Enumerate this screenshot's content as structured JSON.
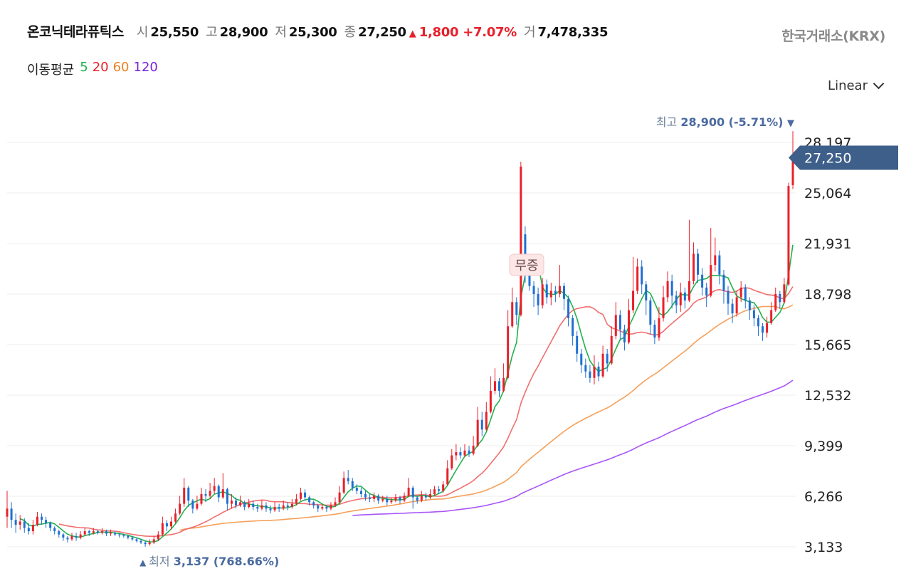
{
  "header": {
    "name": "온코닉테라퓨틱스",
    "open_label": "시",
    "open": "25,550",
    "high_label": "고",
    "high": "28,900",
    "low_label": "저",
    "low": "25,300",
    "close_label": "종",
    "close": "27,250",
    "change_icon": "up-triangle-icon",
    "change": "1,800",
    "change_pct": "+7.07%",
    "volume_label": "거",
    "volume": "7,478,335",
    "exchange": "한국거래소(KRX)"
  },
  "ma_legend": {
    "title": "이동평균",
    "items": [
      {
        "label": "5",
        "color": "#22b14c"
      },
      {
        "label": "20",
        "color": "#e8202a"
      },
      {
        "label": "60",
        "color": "#f08020"
      },
      {
        "label": "120",
        "color": "#7a22d8"
      }
    ]
  },
  "scale": {
    "label": "Linear",
    "icon": "chevron-down-icon"
  },
  "chart_data": {
    "type": "candlestick",
    "y_ticks": [
      "28,197",
      "25,064",
      "21,931",
      "18,798",
      "15,665",
      "12,532",
      "9,399",
      "6,266",
      "3,133"
    ],
    "y_tick_values": [
      28197,
      25064,
      21931,
      18798,
      15665,
      12532,
      9399,
      6266,
      3133
    ],
    "ylim": [
      2100,
      29900
    ],
    "grid": true,
    "colors": {
      "up": "#e8202a",
      "down": "#1f6fd1",
      "ma5": "#22b14c",
      "ma20": "#f26d6d",
      "ma60": "#f5a05a",
      "ma120": "#a855f7"
    },
    "current_price_label": "27,250",
    "current_price": 27250,
    "max_annotation": {
      "label": "최고",
      "value": "28,900",
      "pct": "(-5.71%)",
      "icon": "down-triangle-icon"
    },
    "min_annotation": {
      "label": "최저",
      "value": "3,137",
      "pct": "(768.66%)",
      "icon": "up-triangle-icon"
    },
    "event_badge": {
      "label": "무증"
    },
    "candles": [
      {
        "o": 5000,
        "c": 5500,
        "h": 6600,
        "l": 4300
      },
      {
        "o": 5500,
        "c": 4800,
        "h": 5900,
        "l": 4300
      },
      {
        "o": 4800,
        "c": 4500,
        "h": 5200,
        "l": 4000
      },
      {
        "o": 4500,
        "c": 4700,
        "h": 5100,
        "l": 4200
      },
      {
        "o": 4700,
        "c": 4300,
        "h": 4900,
        "l": 4000
      },
      {
        "o": 4300,
        "c": 4100,
        "h": 4600,
        "l": 3900
      },
      {
        "o": 4100,
        "c": 4500,
        "h": 4800,
        "l": 3900
      },
      {
        "o": 4500,
        "c": 5000,
        "h": 5300,
        "l": 4400
      },
      {
        "o": 5000,
        "c": 4800,
        "h": 5200,
        "l": 4500
      },
      {
        "o": 4800,
        "c": 4600,
        "h": 5000,
        "l": 4300
      },
      {
        "o": 4600,
        "c": 4300,
        "h": 4700,
        "l": 4100
      },
      {
        "o": 4300,
        "c": 4100,
        "h": 4400,
        "l": 3900
      },
      {
        "o": 4100,
        "c": 3900,
        "h": 4200,
        "l": 3700
      },
      {
        "o": 3900,
        "c": 3700,
        "h": 4000,
        "l": 3500
      },
      {
        "o": 3700,
        "c": 3600,
        "h": 3800,
        "l": 3400
      },
      {
        "o": 3600,
        "c": 3800,
        "h": 4000,
        "l": 3500
      },
      {
        "o": 3800,
        "c": 3700,
        "h": 4000,
        "l": 3500
      },
      {
        "o": 3700,
        "c": 3900,
        "h": 4100,
        "l": 3600
      },
      {
        "o": 3900,
        "c": 4100,
        "h": 4300,
        "l": 3800
      },
      {
        "o": 4100,
        "c": 4000,
        "h": 4200,
        "l": 3800
      },
      {
        "o": 4000,
        "c": 4100,
        "h": 4300,
        "l": 3900
      },
      {
        "o": 4100,
        "c": 4000,
        "h": 4200,
        "l": 3900
      },
      {
        "o": 4000,
        "c": 4100,
        "h": 4300,
        "l": 3900
      },
      {
        "o": 4100,
        "c": 3950,
        "h": 4200,
        "l": 3800
      },
      {
        "o": 3950,
        "c": 4000,
        "h": 4200,
        "l": 3800
      },
      {
        "o": 4000,
        "c": 3900,
        "h": 4100,
        "l": 3800
      },
      {
        "o": 3900,
        "c": 3850,
        "h": 4000,
        "l": 3700
      },
      {
        "o": 3850,
        "c": 3800,
        "h": 3950,
        "l": 3700
      },
      {
        "o": 3800,
        "c": 3700,
        "h": 3900,
        "l": 3600
      },
      {
        "o": 3700,
        "c": 3600,
        "h": 3800,
        "l": 3500
      },
      {
        "o": 3600,
        "c": 3500,
        "h": 3700,
        "l": 3400
      },
      {
        "o": 3500,
        "c": 3400,
        "h": 3600,
        "l": 3300
      },
      {
        "o": 3400,
        "c": 3300,
        "h": 3500,
        "l": 3137
      },
      {
        "o": 3300,
        "c": 3400,
        "h": 3600,
        "l": 3200
      },
      {
        "o": 3400,
        "c": 3600,
        "h": 3800,
        "l": 3300
      },
      {
        "o": 3600,
        "c": 3900,
        "h": 4100,
        "l": 3500
      },
      {
        "o": 3900,
        "c": 4600,
        "h": 5000,
        "l": 3800
      },
      {
        "o": 4600,
        "c": 4400,
        "h": 4800,
        "l": 4100
      },
      {
        "o": 4400,
        "c": 4700,
        "h": 5000,
        "l": 4200
      },
      {
        "o": 4700,
        "c": 5200,
        "h": 5500,
        "l": 4600
      },
      {
        "o": 5200,
        "c": 5800,
        "h": 6300,
        "l": 5100
      },
      {
        "o": 5800,
        "c": 6800,
        "h": 7400,
        "l": 5600
      },
      {
        "o": 6800,
        "c": 6000,
        "h": 6900,
        "l": 5600
      },
      {
        "o": 6000,
        "c": 5500,
        "h": 6100,
        "l": 5200
      },
      {
        "o": 5500,
        "c": 5800,
        "h": 6300,
        "l": 5400
      },
      {
        "o": 5800,
        "c": 6400,
        "h": 6800,
        "l": 5700
      },
      {
        "o": 6400,
        "c": 6300,
        "h": 6700,
        "l": 5900
      },
      {
        "o": 6300,
        "c": 6600,
        "h": 7100,
        "l": 6100
      },
      {
        "o": 6600,
        "c": 6900,
        "h": 7400,
        "l": 6400
      },
      {
        "o": 6900,
        "c": 6200,
        "h": 7000,
        "l": 5900
      },
      {
        "o": 6200,
        "c": 6700,
        "h": 7700,
        "l": 6100
      },
      {
        "o": 6700,
        "c": 5800,
        "h": 6800,
        "l": 5400
      },
      {
        "o": 5800,
        "c": 6000,
        "h": 6400,
        "l": 5500
      },
      {
        "o": 6000,
        "c": 5700,
        "h": 6200,
        "l": 5500
      },
      {
        "o": 5700,
        "c": 5900,
        "h": 6300,
        "l": 5600
      },
      {
        "o": 5900,
        "c": 5600,
        "h": 6000,
        "l": 5400
      },
      {
        "o": 5600,
        "c": 5800,
        "h": 6100,
        "l": 5500
      },
      {
        "o": 5800,
        "c": 5600,
        "h": 6000,
        "l": 5400
      },
      {
        "o": 5600,
        "c": 5500,
        "h": 5800,
        "l": 5300
      },
      {
        "o": 5500,
        "c": 5700,
        "h": 6000,
        "l": 5400
      },
      {
        "o": 5700,
        "c": 5500,
        "h": 5900,
        "l": 5300
      },
      {
        "o": 5500,
        "c": 5400,
        "h": 5700,
        "l": 5200
      },
      {
        "o": 5400,
        "c": 5600,
        "h": 5900,
        "l": 5300
      },
      {
        "o": 5600,
        "c": 5500,
        "h": 5800,
        "l": 5300
      },
      {
        "o": 5500,
        "c": 5700,
        "h": 6000,
        "l": 5400
      },
      {
        "o": 5700,
        "c": 5600,
        "h": 5900,
        "l": 5400
      },
      {
        "o": 5600,
        "c": 5800,
        "h": 6100,
        "l": 5500
      },
      {
        "o": 5800,
        "c": 6100,
        "h": 6400,
        "l": 5700
      },
      {
        "o": 6100,
        "c": 6500,
        "h": 6800,
        "l": 6000
      },
      {
        "o": 6500,
        "c": 6200,
        "h": 6700,
        "l": 6000
      },
      {
        "o": 6200,
        "c": 5900,
        "h": 6300,
        "l": 5700
      },
      {
        "o": 5900,
        "c": 5700,
        "h": 6000,
        "l": 5500
      },
      {
        "o": 5700,
        "c": 5500,
        "h": 5800,
        "l": 5300
      },
      {
        "o": 5500,
        "c": 5600,
        "h": 5800,
        "l": 5400
      },
      {
        "o": 5600,
        "c": 5500,
        "h": 5700,
        "l": 5300
      },
      {
        "o": 5500,
        "c": 5700,
        "h": 5900,
        "l": 5400
      },
      {
        "o": 5700,
        "c": 5900,
        "h": 6200,
        "l": 5600
      },
      {
        "o": 5900,
        "c": 6500,
        "h": 6900,
        "l": 5800
      },
      {
        "o": 6500,
        "c": 7400,
        "h": 7800,
        "l": 6400
      },
      {
        "o": 7400,
        "c": 7200,
        "h": 7900,
        "l": 7000
      },
      {
        "o": 7200,
        "c": 6800,
        "h": 7400,
        "l": 6600
      },
      {
        "o": 6800,
        "c": 6600,
        "h": 7000,
        "l": 6400
      },
      {
        "o": 6600,
        "c": 6400,
        "h": 6800,
        "l": 6200
      },
      {
        "o": 6400,
        "c": 6200,
        "h": 6600,
        "l": 6000
      },
      {
        "o": 6200,
        "c": 6100,
        "h": 6400,
        "l": 5900
      },
      {
        "o": 6100,
        "c": 6300,
        "h": 6500,
        "l": 5900
      },
      {
        "o": 6300,
        "c": 6000,
        "h": 6400,
        "l": 5800
      },
      {
        "o": 6000,
        "c": 6100,
        "h": 6300,
        "l": 5900
      },
      {
        "o": 6100,
        "c": 5900,
        "h": 6300,
        "l": 5700
      },
      {
        "o": 5900,
        "c": 6000,
        "h": 6200,
        "l": 5800
      },
      {
        "o": 6000,
        "c": 6200,
        "h": 6400,
        "l": 5900
      },
      {
        "o": 6200,
        "c": 6000,
        "h": 6300,
        "l": 5800
      },
      {
        "o": 6000,
        "c": 6300,
        "h": 6500,
        "l": 5900
      },
      {
        "o": 6300,
        "c": 6800,
        "h": 7400,
        "l": 6200
      },
      {
        "o": 6800,
        "c": 6200,
        "h": 6900,
        "l": 5500
      },
      {
        "o": 6200,
        "c": 6000,
        "h": 6300,
        "l": 5800
      },
      {
        "o": 6000,
        "c": 6300,
        "h": 6600,
        "l": 5900
      },
      {
        "o": 6300,
        "c": 6200,
        "h": 6500,
        "l": 6000
      },
      {
        "o": 6200,
        "c": 6400,
        "h": 6700,
        "l": 6100
      },
      {
        "o": 6400,
        "c": 6700,
        "h": 6900,
        "l": 6300
      },
      {
        "o": 6700,
        "c": 6600,
        "h": 6900,
        "l": 6400
      },
      {
        "o": 6600,
        "c": 7000,
        "h": 7200,
        "l": 6500
      },
      {
        "o": 7000,
        "c": 8000,
        "h": 8500,
        "l": 6900
      },
      {
        "o": 8000,
        "c": 8800,
        "h": 9200,
        "l": 7900
      },
      {
        "o": 8800,
        "c": 9000,
        "h": 9500,
        "l": 8500
      },
      {
        "o": 9000,
        "c": 8800,
        "h": 9300,
        "l": 8600
      },
      {
        "o": 8800,
        "c": 9100,
        "h": 9500,
        "l": 8700
      },
      {
        "o": 9100,
        "c": 8900,
        "h": 9400,
        "l": 8700
      },
      {
        "o": 8900,
        "c": 9400,
        "h": 10000,
        "l": 8800
      },
      {
        "o": 9400,
        "c": 11000,
        "h": 11800,
        "l": 9300
      },
      {
        "o": 11000,
        "c": 10400,
        "h": 11500,
        "l": 10000
      },
      {
        "o": 10400,
        "c": 11500,
        "h": 12100,
        "l": 10300
      },
      {
        "o": 11500,
        "c": 12800,
        "h": 13700,
        "l": 11400
      },
      {
        "o": 12800,
        "c": 13400,
        "h": 14200,
        "l": 12600
      },
      {
        "o": 13400,
        "c": 12800,
        "h": 13600,
        "l": 12400
      },
      {
        "o": 12800,
        "c": 13600,
        "h": 14500,
        "l": 12700
      },
      {
        "o": 13600,
        "c": 16800,
        "h": 17800,
        "l": 13500
      },
      {
        "o": 16800,
        "c": 18300,
        "h": 19200,
        "l": 16700
      },
      {
        "o": 18300,
        "c": 17500,
        "h": 18600,
        "l": 16900
      },
      {
        "o": 17500,
        "c": 26700,
        "h": 27000,
        "l": 17400
      },
      {
        "o": 22500,
        "c": 20500,
        "h": 23000,
        "l": 19500
      },
      {
        "o": 20500,
        "c": 19300,
        "h": 20800,
        "l": 19000
      },
      {
        "o": 19300,
        "c": 18800,
        "h": 19600,
        "l": 18000
      },
      {
        "o": 18800,
        "c": 18100,
        "h": 19200,
        "l": 17500
      },
      {
        "o": 18100,
        "c": 19400,
        "h": 19800,
        "l": 17900
      },
      {
        "o": 19400,
        "c": 18600,
        "h": 19700,
        "l": 18200
      },
      {
        "o": 18600,
        "c": 19000,
        "h": 19500,
        "l": 18100
      },
      {
        "o": 19000,
        "c": 18800,
        "h": 19300,
        "l": 18300
      },
      {
        "o": 18800,
        "c": 19300,
        "h": 20600,
        "l": 18600
      },
      {
        "o": 19300,
        "c": 18500,
        "h": 19500,
        "l": 17800
      },
      {
        "o": 18500,
        "c": 17300,
        "h": 18700,
        "l": 16800
      },
      {
        "o": 17300,
        "c": 16200,
        "h": 17500,
        "l": 15600
      },
      {
        "o": 16200,
        "c": 15100,
        "h": 16500,
        "l": 14600
      },
      {
        "o": 15100,
        "c": 14400,
        "h": 15400,
        "l": 13900
      },
      {
        "o": 14400,
        "c": 14000,
        "h": 14800,
        "l": 13600
      },
      {
        "o": 14000,
        "c": 13600,
        "h": 14400,
        "l": 13300
      },
      {
        "o": 13600,
        "c": 14300,
        "h": 15000,
        "l": 13200
      },
      {
        "o": 14300,
        "c": 13700,
        "h": 14600,
        "l": 13400
      },
      {
        "o": 13700,
        "c": 15100,
        "h": 15600,
        "l": 13600
      },
      {
        "o": 15100,
        "c": 14500,
        "h": 15400,
        "l": 14000
      },
      {
        "o": 14500,
        "c": 16200,
        "h": 16800,
        "l": 14400
      },
      {
        "o": 16200,
        "c": 17500,
        "h": 18300,
        "l": 16000
      },
      {
        "o": 17500,
        "c": 16600,
        "h": 17800,
        "l": 16000
      },
      {
        "o": 16600,
        "c": 15800,
        "h": 16900,
        "l": 15300
      },
      {
        "o": 15800,
        "c": 17800,
        "h": 18500,
        "l": 15700
      },
      {
        "o": 17800,
        "c": 19000,
        "h": 21100,
        "l": 17600
      },
      {
        "o": 19000,
        "c": 20500,
        "h": 21000,
        "l": 18800
      },
      {
        "o": 20500,
        "c": 19400,
        "h": 20900,
        "l": 18800
      },
      {
        "o": 19400,
        "c": 18400,
        "h": 19600,
        "l": 17500
      },
      {
        "o": 18400,
        "c": 16900,
        "h": 18600,
        "l": 16300
      },
      {
        "o": 16900,
        "c": 16100,
        "h": 17200,
        "l": 15700
      },
      {
        "o": 16100,
        "c": 17300,
        "h": 18000,
        "l": 15900
      },
      {
        "o": 17300,
        "c": 18600,
        "h": 19300,
        "l": 17100
      },
      {
        "o": 18600,
        "c": 19600,
        "h": 20200,
        "l": 18300
      },
      {
        "o": 19600,
        "c": 18700,
        "h": 20000,
        "l": 17900
      },
      {
        "o": 18700,
        "c": 18100,
        "h": 19000,
        "l": 17600
      },
      {
        "o": 18100,
        "c": 18900,
        "h": 19500,
        "l": 17700
      },
      {
        "o": 18900,
        "c": 18400,
        "h": 19200,
        "l": 17900
      },
      {
        "o": 18400,
        "c": 19600,
        "h": 23400,
        "l": 18300
      },
      {
        "o": 19600,
        "c": 21300,
        "h": 22000,
        "l": 19400
      },
      {
        "o": 21300,
        "c": 20000,
        "h": 21600,
        "l": 19500
      },
      {
        "o": 20000,
        "c": 19200,
        "h": 20400,
        "l": 18700
      },
      {
        "o": 19200,
        "c": 18700,
        "h": 19500,
        "l": 18000
      },
      {
        "o": 18700,
        "c": 20600,
        "h": 22900,
        "l": 18600
      },
      {
        "o": 20600,
        "c": 21200,
        "h": 22300,
        "l": 20200
      },
      {
        "o": 21200,
        "c": 20000,
        "h": 21500,
        "l": 19400
      },
      {
        "o": 20000,
        "c": 19000,
        "h": 20300,
        "l": 18200
      },
      {
        "o": 19000,
        "c": 18200,
        "h": 19300,
        "l": 17500
      },
      {
        "o": 18200,
        "c": 17600,
        "h": 18500,
        "l": 17000
      },
      {
        "o": 17600,
        "c": 18600,
        "h": 19000,
        "l": 17400
      },
      {
        "o": 18600,
        "c": 19200,
        "h": 19600,
        "l": 18300
      },
      {
        "o": 19200,
        "c": 18400,
        "h": 19400,
        "l": 17900
      },
      {
        "o": 18400,
        "c": 17800,
        "h": 18600,
        "l": 17200
      },
      {
        "o": 17800,
        "c": 17300,
        "h": 18100,
        "l": 16800
      },
      {
        "o": 17300,
        "c": 16800,
        "h": 17500,
        "l": 16200
      },
      {
        "o": 16800,
        "c": 16400,
        "h": 17000,
        "l": 15900
      },
      {
        "o": 16400,
        "c": 17000,
        "h": 17400,
        "l": 16100
      },
      {
        "o": 17000,
        "c": 17800,
        "h": 18300,
        "l": 16900
      },
      {
        "o": 17800,
        "c": 18800,
        "h": 19200,
        "l": 17700
      },
      {
        "o": 18800,
        "c": 18300,
        "h": 19000,
        "l": 17900
      },
      {
        "o": 18300,
        "c": 19400,
        "h": 19800,
        "l": 18200
      },
      {
        "o": 19400,
        "c": 25500,
        "h": 25700,
        "l": 19300
      },
      {
        "o": 25550,
        "c": 27250,
        "h": 28900,
        "l": 25300
      }
    ]
  }
}
